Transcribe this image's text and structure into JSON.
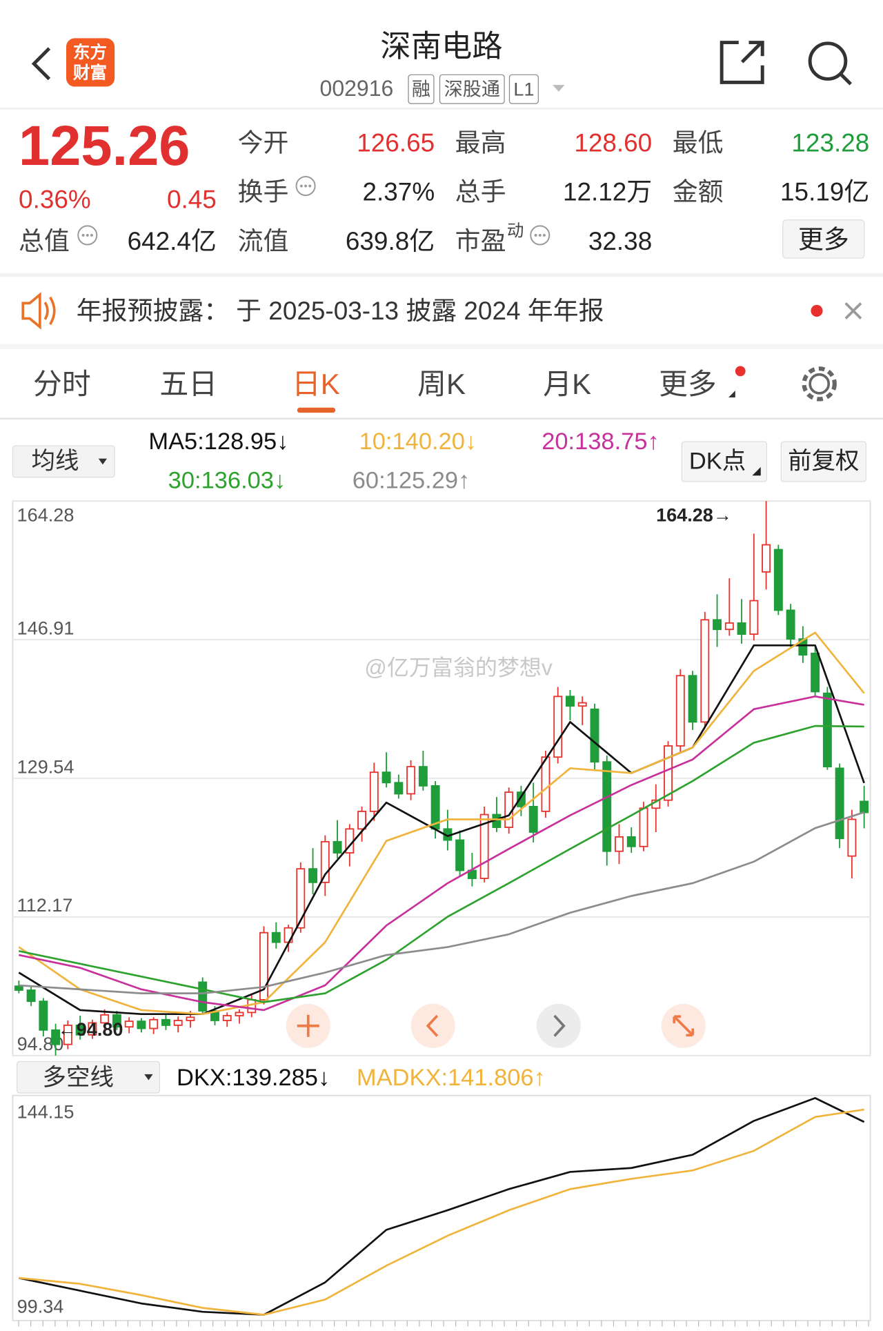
{
  "header": {
    "logo": [
      "东方",
      "财富"
    ],
    "title": "深南电路",
    "code": "002916",
    "tags": [
      "融",
      "深股通",
      "L1"
    ]
  },
  "quote": {
    "price": "125.26",
    "change_pct": "0.36%",
    "change": "0.45",
    "fields": [
      {
        "label": "今开",
        "value": "126.65"
      },
      {
        "label": "最高",
        "value": "128.60"
      },
      {
        "label": "最低",
        "value": "123.28"
      },
      {
        "label": "换手",
        "value": "2.37%"
      },
      {
        "label": "总手",
        "value": "12.12万"
      },
      {
        "label": "金额",
        "value": "15.19亿"
      },
      {
        "label": "总值",
        "value": "642.4亿"
      },
      {
        "label": "流值",
        "value": "639.8亿"
      },
      {
        "label": "市盈",
        "sup": "动",
        "value": "32.38"
      }
    ],
    "more": "更多"
  },
  "notice": {
    "label": "年报预披露：",
    "text": "于 2025-03-13 披露 2024 年年报"
  },
  "tabs": [
    "分时",
    "五日",
    "日K",
    "周K",
    "月K",
    "更多"
  ],
  "chart_data": [
    {
      "type": "candlestick",
      "selector": "均线",
      "buttons": [
        "DK点",
        "前复权"
      ],
      "up_color": "#e8352f",
      "down_color": "#1f9d3a",
      "ohlc": [
        [
          103.5,
          104.2,
          102.6,
          103.0
        ],
        [
          103.0,
          103.6,
          101.0,
          101.6
        ],
        [
          101.6,
          102.0,
          97.2,
          98.0
        ],
        [
          98.0,
          98.8,
          94.8,
          96.2
        ],
        [
          96.2,
          99.2,
          95.6,
          98.6
        ],
        [
          98.6,
          99.8,
          96.8,
          97.4
        ],
        [
          97.4,
          99.3,
          96.9,
          98.9
        ],
        [
          98.9,
          100.6,
          97.9,
          99.9
        ],
        [
          99.9,
          100.4,
          98.0,
          98.4
        ],
        [
          98.4,
          99.6,
          97.6,
          99.1
        ],
        [
          99.1,
          99.5,
          97.7,
          98.2
        ],
        [
          98.2,
          99.6,
          97.5,
          99.3
        ],
        [
          99.3,
          100.0,
          98.0,
          98.6
        ],
        [
          98.6,
          99.7,
          97.7,
          99.2
        ],
        [
          99.2,
          100.4,
          98.3,
          99.6
        ],
        [
          104.0,
          104.6,
          99.9,
          100.4
        ],
        [
          100.4,
          101.0,
          98.6,
          99.2
        ],
        [
          99.2,
          100.2,
          98.4,
          99.8
        ],
        [
          99.8,
          100.6,
          98.8,
          100.2
        ],
        [
          100.2,
          102.5,
          99.6,
          101.8
        ],
        [
          101.8,
          111.0,
          101.2,
          110.2
        ],
        [
          110.2,
          111.5,
          108.2,
          109.0
        ],
        [
          109.0,
          111.2,
          107.8,
          110.8
        ],
        [
          110.8,
          119.0,
          110.2,
          118.2
        ],
        [
          118.2,
          120.8,
          115.0,
          116.5
        ],
        [
          116.5,
          122.4,
          114.8,
          121.6
        ],
        [
          121.6,
          124.3,
          119.5,
          120.2
        ],
        [
          120.2,
          123.8,
          118.5,
          123.2
        ],
        [
          123.2,
          126.0,
          121.6,
          125.4
        ],
        [
          125.4,
          131.5,
          124.2,
          130.3
        ],
        [
          130.3,
          132.8,
          128.4,
          129.0
        ],
        [
          129.0,
          130.0,
          127.0,
          127.6
        ],
        [
          127.6,
          131.8,
          126.8,
          131.0
        ],
        [
          131.0,
          133.0,
          128.0,
          128.6
        ],
        [
          128.6,
          129.2,
          122.0,
          123.2
        ],
        [
          123.2,
          125.6,
          120.5,
          121.8
        ],
        [
          121.8,
          123.0,
          117.2,
          118.0
        ],
        [
          118.0,
          120.2,
          116.0,
          117.0
        ],
        [
          117.0,
          126.0,
          116.5,
          125.0
        ],
        [
          125.0,
          127.2,
          122.8,
          123.4
        ],
        [
          123.4,
          128.4,
          122.6,
          127.8
        ],
        [
          127.8,
          128.6,
          124.8,
          126.0
        ],
        [
          126.0,
          129.0,
          121.5,
          122.8
        ],
        [
          125.4,
          133.0,
          124.6,
          132.2
        ],
        [
          132.2,
          141.0,
          131.4,
          139.8
        ],
        [
          139.8,
          140.6,
          136.8,
          138.6
        ],
        [
          138.6,
          139.8,
          136.2,
          139.0
        ],
        [
          138.2,
          138.9,
          130.6,
          131.6
        ],
        [
          131.6,
          132.4,
          118.6,
          120.4
        ],
        [
          120.4,
          123.8,
          118.8,
          122.2
        ],
        [
          122.2,
          123.4,
          120.2,
          121.0
        ],
        [
          121.0,
          126.6,
          120.4,
          125.8
        ],
        [
          125.8,
          128.8,
          122.8,
          126.8
        ],
        [
          126.8,
          134.2,
          126.0,
          133.6
        ],
        [
          133.6,
          143.2,
          132.8,
          142.4
        ],
        [
          142.4,
          143.0,
          135.6,
          136.6
        ],
        [
          136.6,
          150.4,
          135.8,
          149.4
        ],
        [
          149.4,
          152.6,
          146.0,
          148.2
        ],
        [
          148.2,
          154.6,
          147.4,
          149.0
        ],
        [
          149.0,
          152.0,
          146.4,
          147.6
        ],
        [
          147.6,
          160.2,
          146.8,
          151.8
        ],
        [
          155.4,
          164.28,
          153.2,
          158.8
        ],
        [
          158.2,
          158.8,
          150.0,
          150.6
        ],
        [
          150.6,
          151.4,
          146.0,
          147.0
        ],
        [
          147.0,
          148.6,
          144.0,
          145.0
        ],
        [
          145.2,
          146.0,
          139.8,
          140.4
        ],
        [
          140.2,
          141.0,
          130.6,
          131.0
        ],
        [
          130.8,
          131.4,
          120.8,
          122.0
        ],
        [
          119.8,
          125.6,
          117.0,
          124.4
        ],
        [
          126.65,
          128.6,
          123.28,
          125.26
        ]
      ],
      "xlim": [
        -0.5,
        69.5
      ],
      "ylim": [
        94.8,
        164.28
      ],
      "yticks": [
        164.28,
        146.91,
        129.54,
        112.17,
        {
          "value": 94.8,
          "label": "94.80"
        }
      ],
      "grid": true,
      "x": [
        0,
        5,
        10,
        15,
        20,
        25,
        30,
        35,
        40,
        45,
        50,
        55,
        60,
        65,
        69
      ],
      "series": [
        {
          "name": "MA5:128.95↓",
          "color": "#111111",
          "values": [
            105.2,
            100.5,
            100,
            100,
            103.1,
            117.5,
            126.5,
            122.3,
            124.9,
            136.6,
            130.2,
            133.4,
            146.2,
            146.2,
            128.95
          ]
        },
        {
          "name": "10:140.20↓",
          "color": "#f0b43c",
          "values": [
            108.4,
            103.1,
            100.5,
            100,
            101.5,
            109,
            121.7,
            124.4,
            124.4,
            130.8,
            130.2,
            133.4,
            143,
            147.8,
            140.2
          ]
        },
        {
          "name": "20:138.75↑",
          "color": "#c8319b",
          "values": [
            107.4,
            105.8,
            103.1,
            101.5,
            100.5,
            103.6,
            111.1,
            116.4,
            120.7,
            124.9,
            128.7,
            131.9,
            138.2,
            139.8,
            138.75
          ]
        },
        {
          "name": "30:136.03↓",
          "color": "#2ea22e",
          "values": [
            107.9,
            106.3,
            104.7,
            103.1,
            101.5,
            102.6,
            106.8,
            112.2,
            116.4,
            120.7,
            124.9,
            129.2,
            134,
            136.1,
            136.03
          ]
        },
        {
          "name": "60:125.29↑",
          "color": "#8c8c8c",
          "values": [
            103.6,
            103.1,
            102.6,
            102.6,
            103.4,
            105.2,
            107.4,
            108.4,
            110,
            112.7,
            114.8,
            116.4,
            119.1,
            123.3,
            125.29
          ]
        }
      ],
      "annotations": [
        "164.28→",
        "←94.80"
      ],
      "watermark": "@亿万富翁的梦想v"
    },
    {
      "type": "line",
      "selector": "多空线",
      "xlim": [
        -0.5,
        69.5
      ],
      "ylim": [
        99.34,
        144.15
      ],
      "yticks": [
        144.15,
        99.34
      ],
      "grid": false,
      "x": [
        0,
        5,
        10,
        15,
        20,
        25,
        30,
        35,
        40,
        45,
        50,
        55,
        60,
        65,
        69
      ],
      "series": [
        {
          "name": "DKX:139.285↓",
          "color": "#111111",
          "values": [
            107.5,
            104.9,
            102.3,
            100.6,
            100.0,
            106.6,
            117.3,
            121.3,
            125.6,
            129.1,
            129.9,
            132.6,
            139.5,
            144.15,
            139.285
          ]
        },
        {
          "name": "MADKX:141.806↑",
          "color": "#f0b43c",
          "values": [
            107.5,
            106.3,
            104.0,
            101.4,
            100,
            103.1,
            110,
            116.1,
            121.3,
            125.6,
            127.7,
            129.4,
            133.4,
            140.3,
            141.806
          ]
        }
      ]
    }
  ]
}
